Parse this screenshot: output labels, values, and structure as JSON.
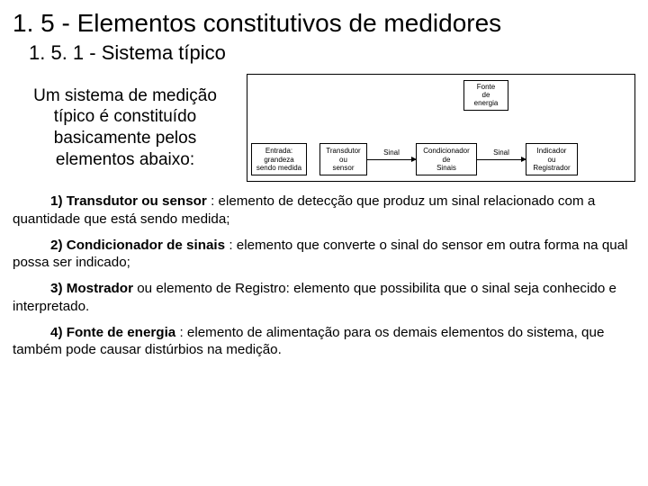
{
  "title": "1. 5 - Elementos constitutivos de medidores",
  "subtitle": "1. 5. 1 - Sistema típico",
  "intro": "Um sistema de medição típico é constituído basicamente pelos elementos abaixo:",
  "diagram": {
    "type": "flowchart",
    "border_color": "#000000",
    "background_color": "#ffffff",
    "font_size_pt": 8,
    "energy": {
      "l1": "Fonte",
      "l2": "de",
      "l3": "energia"
    },
    "nodes": {
      "n1": {
        "l1": "Entrada:",
        "l2": "grandeza",
        "l3": "sendo medida"
      },
      "n2": {
        "l1": "Transdutor",
        "l2": "ou",
        "l3": "sensor"
      },
      "n3": {
        "l1": "Condicionador",
        "l2": "de",
        "l3": "Sinais"
      },
      "n4": {
        "l1": "Indicador",
        "l2": "ou",
        "l3": "Registrador"
      }
    },
    "edges": {
      "a2": {
        "label": "Sinal"
      },
      "a3": {
        "label": "Sinal"
      }
    }
  },
  "paragraphs": {
    "p1": {
      "bold": "1) Transdutor ou sensor",
      "rest": " : elemento de detecção que produz um sinal relacionado com a quantidade que está sendo medida;"
    },
    "p2": {
      "bold": "2) Condicionador de sinais",
      "rest": " : elemento que converte o sinal do sensor em outra forma na qual possa ser indicado;"
    },
    "p3": {
      "bold": "3) Mostrador",
      "rest": " ou elemento de Registro: elemento que possibilita que o sinal seja conhecido e interpretado."
    },
    "p4": {
      "bold": "4) Fonte de energia",
      "rest": " : elemento de alimentação para os demais elementos do sistema, que também pode causar distúrbios na medição."
    }
  }
}
